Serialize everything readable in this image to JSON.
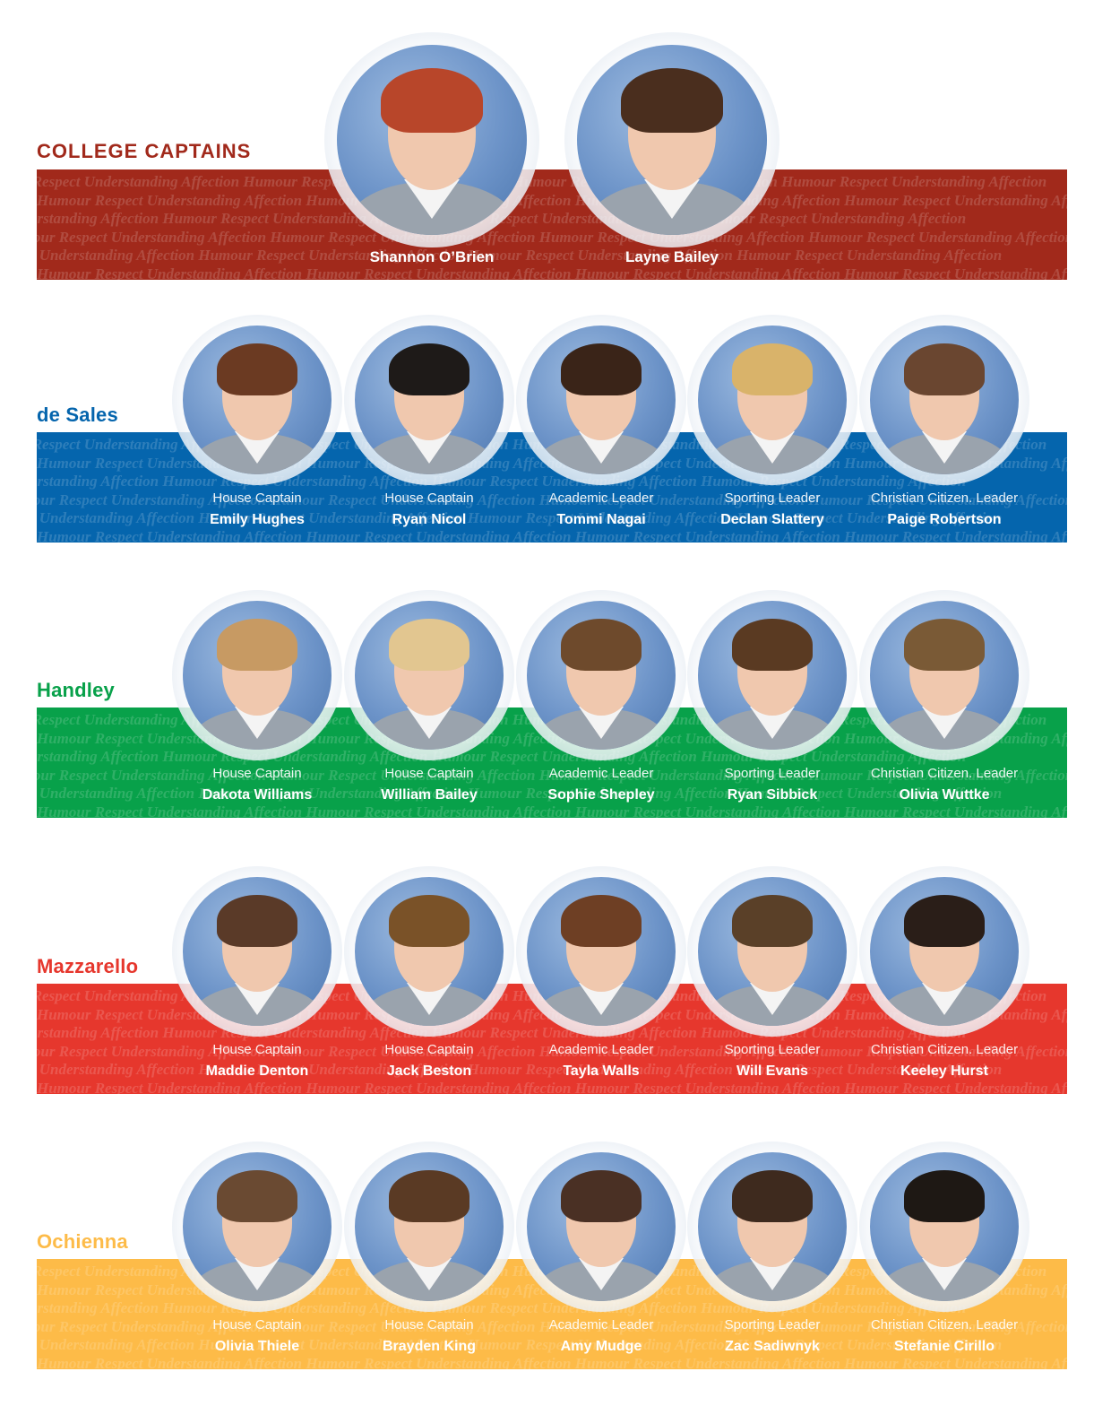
{
  "pattern_text": "Humour Respect Understanding Affection Humour Respect Understanding Affection Humour Respect Understanding Affection Humour Respect Understanding Affection",
  "colors": {
    "captains": "#a1291b",
    "desales": "#0565ad",
    "handley": "#08a14a",
    "mazzarello": "#e6372d",
    "ochienna": "#fdbb48"
  },
  "captains": {
    "title": "COLLEGE CAPTAINS",
    "people": [
      {
        "name": "Shannon O’Brien"
      },
      {
        "name": "Layne Bailey"
      }
    ]
  },
  "houses": [
    {
      "title": "de Sales",
      "people": [
        {
          "role": "House Captain",
          "name": "Emily Hughes"
        },
        {
          "role": "House Captain",
          "name": "Ryan Nicol"
        },
        {
          "role": "Academic Leader",
          "name": "Tommi Nagai"
        },
        {
          "role": "Sporting Leader",
          "name": "Declan Slattery"
        },
        {
          "role": "Christian Citizen. Leader",
          "name": "Paige Robertson"
        }
      ]
    },
    {
      "title": "Handley",
      "people": [
        {
          "role": "House Captain",
          "name": "Dakota Williams"
        },
        {
          "role": "House Captain",
          "name": "William Bailey"
        },
        {
          "role": "Academic Leader",
          "name": "Sophie Shepley"
        },
        {
          "role": "Sporting Leader",
          "name": "Ryan Sibbick"
        },
        {
          "role": "Christian Citizen. Leader",
          "name": "Olivia Wuttke"
        }
      ]
    },
    {
      "title": "Mazzarello",
      "people": [
        {
          "role": "House Captain",
          "name": "Maddie Denton"
        },
        {
          "role": "House Captain",
          "name": "Jack Beston"
        },
        {
          "role": "Academic Leader",
          "name": "Tayla Walls"
        },
        {
          "role": "Sporting Leader",
          "name": "Will Evans"
        },
        {
          "role": "Christian Citizen. Leader",
          "name": "Keeley Hurst"
        }
      ]
    },
    {
      "title": "Ochienna",
      "people": [
        {
          "role": "House Captain",
          "name": "Olivia Thiele"
        },
        {
          "role": "House Captain",
          "name": "Brayden King"
        },
        {
          "role": "Academic Leader",
          "name": "Amy Mudge"
        },
        {
          "role": "Sporting Leader",
          "name": "Zac Sadiwnyk"
        },
        {
          "role": "Christian Citizen. Leader",
          "name": "Stefanie Cirillo"
        }
      ]
    }
  ]
}
